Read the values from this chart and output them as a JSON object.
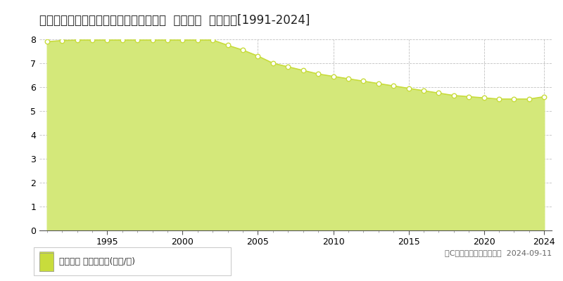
{
  "title": "山形県天童市大字山元字的場５５番２外  地価公示  地価推移[1991-2024]",
  "years": [
    1991,
    1992,
    1993,
    1994,
    1995,
    1996,
    1997,
    1998,
    1999,
    2000,
    2001,
    2002,
    2003,
    2004,
    2005,
    2006,
    2007,
    2008,
    2009,
    2010,
    2011,
    2012,
    2013,
    2014,
    2015,
    2016,
    2017,
    2018,
    2019,
    2020,
    2021,
    2022,
    2023,
    2024
  ],
  "values": [
    7.9,
    7.95,
    7.97,
    7.97,
    7.97,
    7.97,
    7.97,
    7.97,
    7.97,
    7.97,
    7.97,
    7.97,
    7.75,
    7.55,
    7.3,
    7.0,
    6.85,
    6.7,
    6.55,
    6.45,
    6.35,
    6.25,
    6.15,
    6.05,
    5.95,
    5.85,
    5.75,
    5.65,
    5.6,
    5.55,
    5.5,
    5.5,
    5.5,
    5.6
  ],
  "line_color": "#c8dc3c",
  "fill_color": "#d4e87a",
  "marker_facecolor": "#ffffff",
  "marker_edgecolor": "#c8dc3c",
  "background_color": "#ffffff",
  "plot_bg_color": "#ffffff",
  "grid_color": "#bbbbbb",
  "ylim": [
    0,
    8
  ],
  "yticks": [
    0,
    1,
    2,
    3,
    4,
    5,
    6,
    7,
    8
  ],
  "xtick_positions": [
    1995,
    2000,
    2005,
    2010,
    2015,
    2020,
    2024
  ],
  "legend_label": "地価公示 平均坪単価(万円/坪)",
  "legend_square_color": "#c8dc3c",
  "copyright_text": "（C）土地価格ドットコム  2024-09-11",
  "title_fontsize": 12,
  "tick_fontsize": 9,
  "legend_fontsize": 9,
  "copyright_fontsize": 8
}
